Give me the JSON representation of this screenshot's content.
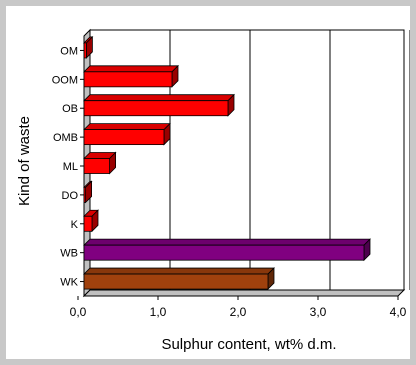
{
  "chart_data": {
    "type": "bar",
    "orientation": "horizontal",
    "title": "",
    "xlabel": "Sulphur content, wt% d.m.",
    "ylabel": "Kind of waste",
    "xlim": [
      0,
      4.0
    ],
    "xticks": [
      "0,0",
      "1,0",
      "2,0",
      "3,0",
      "4,0"
    ],
    "grid": "vertical",
    "style": "3d",
    "categories": [
      "OM",
      "OOM",
      "OB",
      "OMB",
      "ML",
      "DO",
      "K",
      "WB",
      "WK"
    ],
    "values": [
      0.03,
      1.1,
      1.8,
      1.0,
      0.32,
      0.02,
      0.1,
      3.5,
      2.3
    ],
    "colors": [
      "#ff0000",
      "#ff0000",
      "#ff0000",
      "#ff0000",
      "#ff0000",
      "#ff0000",
      "#ff0000",
      "#800080",
      "#a0410d"
    ]
  }
}
